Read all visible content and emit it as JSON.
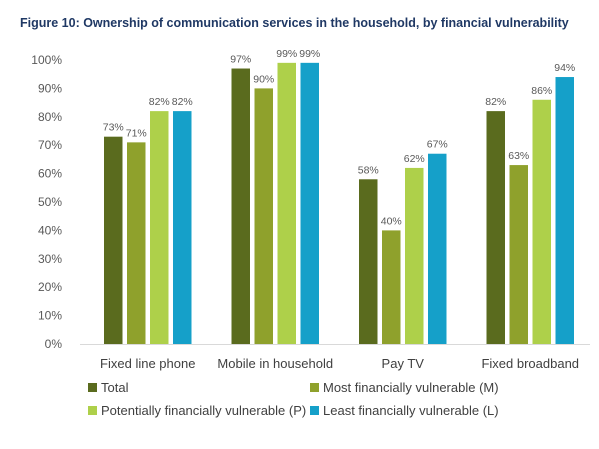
{
  "chart_data": {
    "type": "bar",
    "title": "Figure 10: Ownership of communication services in the household, by financial vulnerability",
    "categories": [
      "Fixed line phone",
      "Mobile in household",
      "Pay TV",
      "Fixed broadband"
    ],
    "series": [
      {
        "name": "Total",
        "values": [
          73,
          97,
          58,
          82
        ],
        "color": "#5a6b1e"
      },
      {
        "name": "Most financially vulnerable (M)",
        "values": [
          71,
          90,
          40,
          63
        ],
        "color": "#8fa12c"
      },
      {
        "name": "Potentially financially vulnerable (P)",
        "values": [
          82,
          99,
          62,
          86
        ],
        "color": "#aed04a"
      },
      {
        "name": "Least financially vulnerable (L)",
        "values": [
          82,
          99,
          67,
          94
        ],
        "color": "#15a0c9"
      }
    ],
    "value_suffix": "%",
    "ylim": [
      0,
      100
    ],
    "yticks": [
      0,
      10,
      20,
      30,
      40,
      50,
      60,
      70,
      80,
      90,
      100
    ],
    "ytick_labels": [
      "0%",
      "10%",
      "20%",
      "30%",
      "40%",
      "50%",
      "60%",
      "70%",
      "80%",
      "90%",
      "100%"
    ],
    "legend_position": "bottom",
    "grid": false
  }
}
